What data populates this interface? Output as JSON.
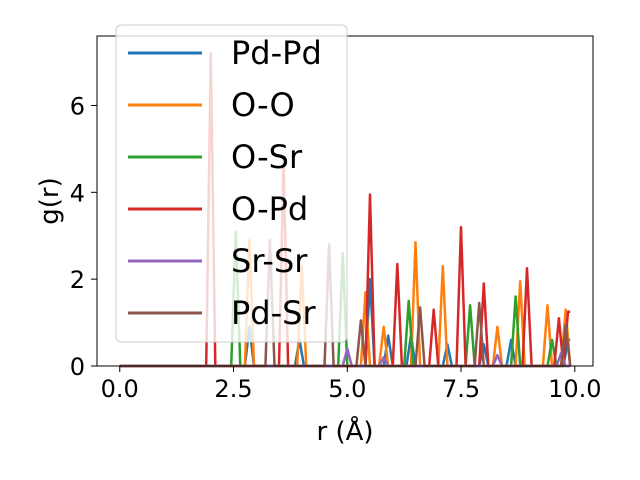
{
  "chart_data": {
    "type": "line",
    "title": "",
    "xlabel": "r (Å)",
    "ylabel": "g(r)",
    "xlim": [
      -0.5,
      10.4
    ],
    "ylim": [
      0,
      7.6
    ],
    "xticks": [
      0.0,
      2.5,
      5.0,
      7.5,
      10.0
    ],
    "xtick_labels": [
      "0.0",
      "2.5",
      "5.0",
      "7.5",
      "10.0"
    ],
    "yticks": [
      0,
      2,
      4,
      6
    ],
    "ytick_labels": [
      "0",
      "2",
      "4",
      "6"
    ],
    "grid": false,
    "legend_position": "top-left",
    "series": [
      {
        "name": "Pd-Pd",
        "color": "#1f77b4",
        "x": [
          0.0,
          2.75,
          2.85,
          2.95,
          3.85,
          3.95,
          4.05,
          5.4,
          5.5,
          5.6,
          5.8,
          5.9,
          6.0,
          6.3,
          6.4,
          6.5,
          7.1,
          7.2,
          7.3,
          7.9,
          8.0,
          8.1,
          8.5,
          8.6,
          8.7,
          9.75,
          9.85,
          9.9
        ],
        "y": [
          0,
          0,
          0.9,
          0,
          0,
          0.6,
          0,
          0,
          2.0,
          0,
          0,
          0.7,
          0,
          0,
          0.7,
          0,
          0,
          0.5,
          0,
          0,
          0.5,
          0,
          0,
          0.6,
          0,
          0,
          0.6,
          0.6
        ]
      },
      {
        "name": "O-O",
        "color": "#ff7f0e",
        "x": [
          0.0,
          2.75,
          2.85,
          2.95,
          3.9,
          4.0,
          4.1,
          5.3,
          5.4,
          5.5,
          5.7,
          5.8,
          5.9,
          6.4,
          6.5,
          6.6,
          7.0,
          7.1,
          7.2,
          8.2,
          8.3,
          8.4,
          8.7,
          8.8,
          8.9,
          9.3,
          9.4,
          9.5,
          9.7,
          9.8,
          9.9
        ],
        "y": [
          0,
          0,
          2.9,
          0,
          0,
          2.3,
          0,
          0,
          1.7,
          0,
          0,
          0.9,
          0,
          0,
          2.85,
          0,
          0,
          2.3,
          0,
          0,
          0.9,
          0,
          0,
          1.95,
          0,
          0,
          1.4,
          0,
          0,
          1.3,
          0
        ]
      },
      {
        "name": "O-Sr",
        "color": "#2ca02c",
        "x": [
          0.0,
          2.45,
          2.55,
          2.65,
          4.8,
          4.9,
          5.0,
          6.25,
          6.35,
          6.45,
          7.6,
          7.7,
          7.8,
          8.6,
          8.7,
          8.8,
          9.4,
          9.5,
          9.6,
          9.9
        ],
        "y": [
          0,
          0,
          3.1,
          0,
          0,
          2.6,
          0,
          0,
          1.5,
          0,
          0,
          1.4,
          0,
          0,
          1.6,
          0,
          0,
          0.6,
          0,
          0
        ]
      },
      {
        "name": "O-Pd",
        "color": "#d62728",
        "x": [
          0.0,
          1.9,
          2.0,
          2.1,
          3.5,
          3.6,
          3.7,
          5.4,
          5.5,
          5.6,
          6.0,
          6.1,
          6.2,
          6.8,
          6.9,
          7.0,
          7.4,
          7.5,
          7.6,
          7.9,
          8.0,
          8.1,
          8.85,
          8.95,
          9.05,
          9.55,
          9.65,
          9.75,
          9.85,
          9.9
        ],
        "y": [
          0,
          0,
          7.2,
          0,
          0,
          4.7,
          0,
          0,
          3.95,
          0,
          0,
          2.35,
          0,
          0,
          1.3,
          0,
          0,
          3.2,
          0,
          0,
          1.9,
          0,
          0,
          2.25,
          0,
          0,
          1.1,
          0,
          1.25,
          1.25
        ]
      },
      {
        "name": "Sr-Sr",
        "color": "#9467bd",
        "x": [
          0.0,
          4.9,
          5.0,
          5.1,
          5.7,
          5.8,
          5.9,
          8.2,
          8.3,
          8.4,
          9.6,
          9.7,
          9.8,
          9.9
        ],
        "y": [
          0,
          0,
          0.4,
          0,
          0,
          0.2,
          0,
          0,
          0.25,
          0,
          0,
          0.3,
          0,
          0
        ]
      },
      {
        "name": "Pd-Sr",
        "color": "#8c564b",
        "x": [
          0.0,
          3.2,
          3.3,
          3.4,
          4.5,
          4.6,
          4.7,
          5.2,
          5.3,
          5.4,
          6.5,
          6.6,
          6.7,
          7.8,
          7.9,
          8.0,
          9.7,
          9.8,
          9.9
        ],
        "y": [
          0,
          0,
          2.9,
          0,
          0,
          2.8,
          0,
          0,
          1.05,
          0,
          0,
          1.35,
          0,
          0,
          1.45,
          0,
          0,
          0.95,
          0
        ]
      }
    ]
  }
}
